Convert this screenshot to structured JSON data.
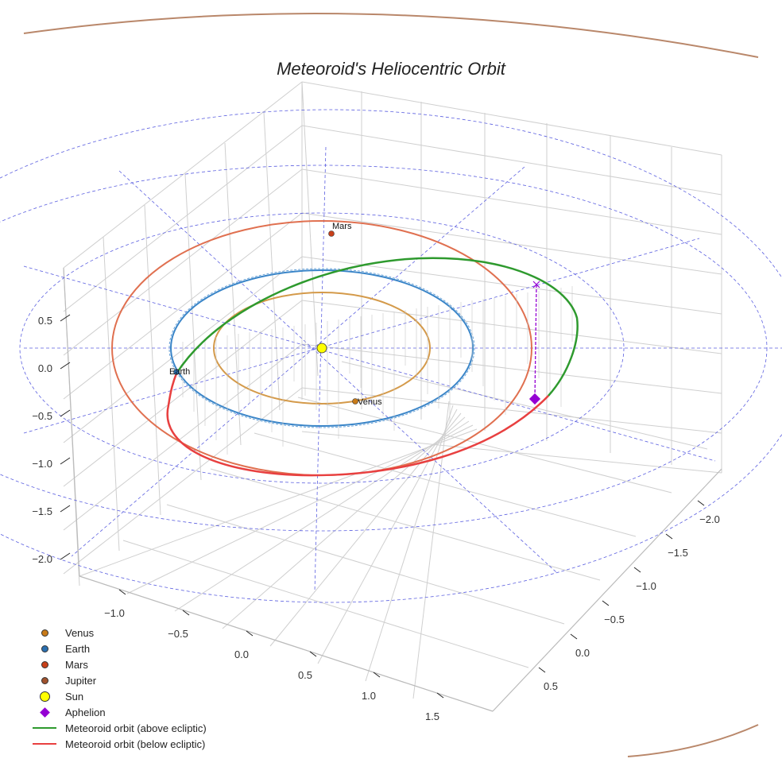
{
  "chart_data": {
    "type": "scatter3d",
    "title": "Meteoroid's Heliocentric Orbit",
    "axes": {
      "x_ticks": [
        "−1.0",
        "−0.5",
        "0.0",
        "0.5",
        "1.0",
        "1.5"
      ],
      "y_ticks": [
        "−2.0",
        "−1.5",
        "−1.0",
        "−0.5",
        "0.0",
        "0.5"
      ],
      "z_ticks": [
        "0.5",
        "0.0",
        "−0.5",
        "−1.0",
        "−1.5",
        "−2.0"
      ],
      "grid": true
    },
    "planets": [
      {
        "name": "Venus",
        "label": "Venus",
        "radius_au": 0.72,
        "color": "#d49a4a",
        "marker_color": "#c87a18"
      },
      {
        "name": "Earth",
        "label": "Earth",
        "radius_au": 1.0,
        "color": "#3a85c8",
        "marker_color": "#2a6fb0"
      },
      {
        "name": "Mars",
        "label": "Mars",
        "radius_au": 1.52,
        "color": "#e07050",
        "marker_color": "#c8401a"
      },
      {
        "name": "Jupiter",
        "label": "Jupiter",
        "radius_au": 5.2,
        "color": "#b9876a",
        "marker_color": "#a0522d"
      }
    ],
    "sun": {
      "label": "Sun",
      "color": "#ffff00"
    },
    "aphelion": {
      "label": "Aphelion",
      "color": "#9400d3"
    },
    "meteoroid_orbit": {
      "above_label": "Meteoroid orbit (above ecliptic)",
      "above_color": "#2e9a2e",
      "below_label": "Meteoroid orbit (below ecliptic)",
      "below_color": "#e84040"
    },
    "legend_position": "bottom-left"
  }
}
